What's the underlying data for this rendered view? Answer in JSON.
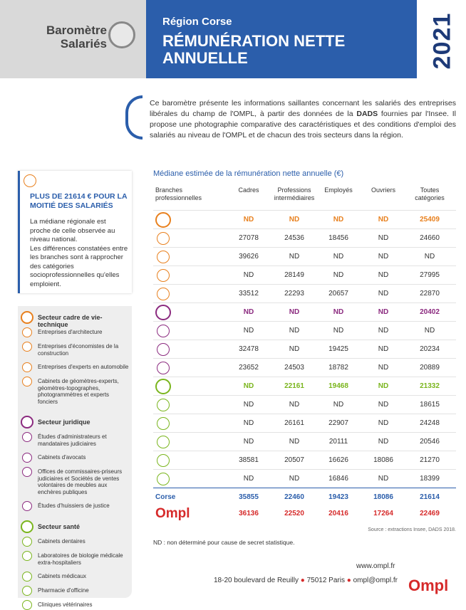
{
  "header": {
    "logo_line1": "Baromètre",
    "logo_line2": "Salariés",
    "region": "Région Corse",
    "title_line1": "RÉMUNÉRATION NETTE",
    "title_line2": "ANNUELLE",
    "year": "2021"
  },
  "intro": {
    "before": "Ce baromètre présente les informations saillantes concernant les salariés des entreprises libérales du champ de l'OMPL, à partir des données de la ",
    "bold": "DADS",
    "after": " fournies par l'Insee. Il propose une photographie comparative des caractéristiques et des conditions d'emploi des salariés au niveau de l'OMPL et de chacun des trois secteurs dans la région."
  },
  "highlight": {
    "title": "PLUS DE 21614 € POUR LA MOITIÉ DES SALARIÉS",
    "paragraph1": "La médiane régionale est proche de celle observée au niveau national.",
    "paragraph2": "Les différences constatées entre les branches sont à rapprocher des catégories socioprofessionnelles qu'elles emploient."
  },
  "legend": {
    "sectors": [
      {
        "name": "Secteur cadre de vie-technique",
        "color": "#e8801e",
        "items": [
          "Entreprises d'architecture",
          "Entreprises d'économistes de la construction",
          "Entreprises d'experts en automobile",
          "Cabinets de géomètres-experts, géomètres-topographes, photogrammètres et experts fonciers"
        ]
      },
      {
        "name": "Secteur juridique",
        "color": "#8b2a7f",
        "items": [
          "Études d'administrateurs et mandataires judiciaires",
          "Cabinets d'avocats",
          "Offices de commissaires-priseurs judiciaires et Sociétés de ventes volontaires de meubles aux enchères publiques",
          "Études d'huissiers de justice"
        ]
      },
      {
        "name": "Secteur santé",
        "color": "#7ab51d",
        "items": [
          "Cabinets dentaires",
          "Laboratoires de biologie médicale extra-hospitaliers",
          "Cabinets médicaux",
          "Pharmacie d'officine",
          "Cliniques vétérinaires"
        ]
      }
    ]
  },
  "table": {
    "title": "Médiane estimée de la rémunération nette annuelle (€)",
    "headers": [
      "Branches professionnelles",
      "Cadres",
      "Professions intermédiaires",
      "Employés",
      "Ouvriers",
      "Toutes catégories"
    ],
    "rows": [
      {
        "color": "#e8801e",
        "values": [
          "ND",
          "ND",
          "ND",
          "ND",
          "25409"
        ]
      },
      {
        "values": [
          "27078",
          "24536",
          "18456",
          "ND",
          "24660"
        ]
      },
      {
        "values": [
          "39626",
          "ND",
          "ND",
          "ND",
          "ND"
        ]
      },
      {
        "values": [
          "ND",
          "28149",
          "ND",
          "ND",
          "27995"
        ]
      },
      {
        "values": [
          "33512",
          "22293",
          "20657",
          "ND",
          "22870"
        ]
      },
      {
        "color": "#8b2a7f",
        "values": [
          "ND",
          "ND",
          "ND",
          "ND",
          "20402"
        ]
      },
      {
        "values": [
          "ND",
          "ND",
          "ND",
          "ND",
          "ND"
        ]
      },
      {
        "values": [
          "32478",
          "ND",
          "19425",
          "ND",
          "20234"
        ]
      },
      {
        "values": [
          "23652",
          "24503",
          "18782",
          "ND",
          "20889"
        ]
      },
      {
        "color": "#7ab51d",
        "values": [
          "ND",
          "22161",
          "19468",
          "ND",
          "21332"
        ]
      },
      {
        "values": [
          "ND",
          "ND",
          "ND",
          "ND",
          "18615"
        ]
      },
      {
        "values": [
          "ND",
          "26161",
          "22907",
          "ND",
          "24248"
        ]
      },
      {
        "values": [
          "ND",
          "ND",
          "20111",
          "ND",
          "20546"
        ]
      },
      {
        "values": [
          "38581",
          "20507",
          "16626",
          "18086",
          "21270"
        ]
      },
      {
        "values": [
          "ND",
          "ND",
          "16846",
          "ND",
          "18399"
        ]
      }
    ],
    "corse": {
      "label": "Corse",
      "values": [
        "35855",
        "22460",
        "19423",
        "18086",
        "21614"
      ]
    },
    "ompl": {
      "label": "Ompl",
      "values": [
        "36136",
        "22520",
        "20416",
        "17264",
        "22469"
      ]
    },
    "source": "Source : extractions Insee, DADS 2018.",
    "note": "ND : non déterminé pour cause de secret statistique."
  },
  "footer": {
    "web": "www.ompl.fr",
    "address": "18-20 boulevard de Reuilly",
    "city": "75012 Paris",
    "email": "ompl@ompl.fr",
    "logo": "Ompl"
  }
}
